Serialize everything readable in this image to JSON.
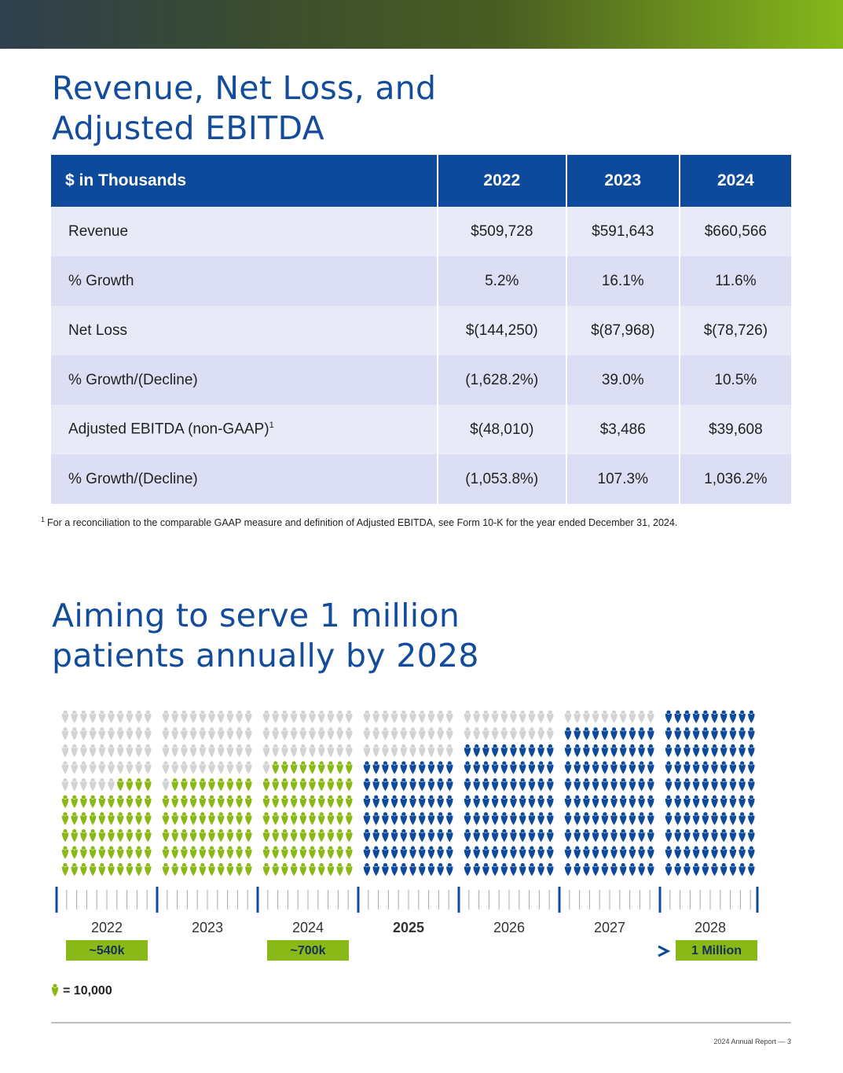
{
  "financials": {
    "title": [
      "Revenue, Net Loss, and",
      "Adjusted EBITDA"
    ],
    "table": {
      "header": [
        "$ in Thousands",
        "2022",
        "2023",
        "2024"
      ],
      "rows": [
        {
          "label": "Revenue",
          "cells": [
            "$509,728",
            "$591,643",
            "$660,566"
          ]
        },
        {
          "label": "% Growth",
          "cells": [
            "5.2%",
            "16.1%",
            "11.6%"
          ]
        },
        {
          "label": "Net Loss",
          "cells": [
            "$(144,250)",
            "$(87,968)",
            "$(78,726)"
          ]
        },
        {
          "label": "% Growth/(Decline)",
          "cells": [
            "(1,628.2%)",
            "39.0%",
            "10.5%"
          ]
        },
        {
          "label": "Adjusted EBITDA (non-GAAP)",
          "note": "1",
          "cells": [
            "$(48,010)",
            "$3,486",
            "$39,608"
          ]
        },
        {
          "label": "% Growth/(Decline)",
          "cells": [
            "(1,053.8%)",
            "107.3%",
            "1,036.2%"
          ]
        }
      ]
    },
    "footnote": {
      "marker": "1",
      "text": "For a reconciliation to the comparable GAAP measure and definition of Adjusted EBITDA, see Form 10-K for the year ended December 31, 2024."
    }
  },
  "patients": {
    "title": [
      "Aiming to serve 1 million",
      "patients annually by 2028"
    ],
    "icons_per_year": 100,
    "empty_color": "#d2d3d5",
    "years": [
      {
        "label": "2022",
        "icons": 54,
        "color": "#8ab817",
        "callout": "~540k"
      },
      {
        "label": "2023",
        "icons": 59,
        "color": "#8ab817"
      },
      {
        "label": "2024",
        "icons": 69,
        "color": "#8ab817",
        "callout": "~700k"
      },
      {
        "label": "2025",
        "icons": 70,
        "color": "#0d4a9b"
      },
      {
        "label": "2026",
        "icons": 80,
        "color": "#0d4a9b"
      },
      {
        "label": "2027",
        "icons": 90,
        "color": "#0d4a9b"
      },
      {
        "label": "2028",
        "icons": 100,
        "color": "#0d4a9b",
        "callout": "1 Million"
      }
    ],
    "legend": "= 10,000"
  },
  "footer": "2024 Annual Report — 3"
}
